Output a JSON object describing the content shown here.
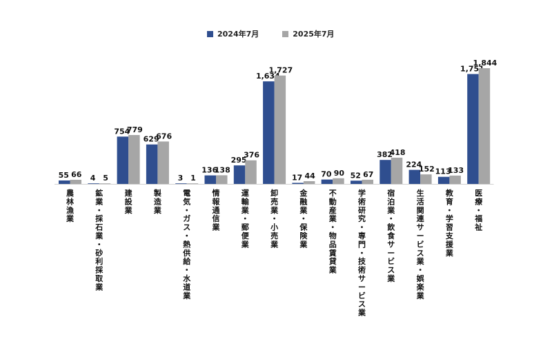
{
  "colors": {
    "series_2024": "#2f4e8f",
    "series_2025": "#a6a6a6"
  },
  "chart_data": {
    "type": "bar",
    "legend_position": "top",
    "grid": false,
    "categories": [
      "農林漁業",
      "鉱業・採石業・砂利採取業",
      "建設業",
      "製造業",
      "電気・ガス・熱供給・水道業",
      "情報通信業",
      "運輸業・郵便業",
      "卸売業・小売業",
      "金融業・保険業",
      "不動産業・物品賃貸業",
      "学術研究・専門・技術サービス業",
      "宿泊業・飲食サービス業",
      "生活関連サービス業・娯楽業",
      "教育・学習支援業",
      "医療・福祉"
    ],
    "series": [
      {
        "name": "2024年7月",
        "values": [
          55,
          4,
          754,
          629,
          3,
          136,
          295,
          1634,
          17,
          70,
          52,
          382,
          224,
          113,
          1751
        ],
        "labels": [
          "55",
          "4",
          "754",
          "629",
          "3",
          "136",
          "295",
          "1,634",
          "17",
          "70",
          "52",
          "382",
          "224",
          "113",
          "1,751"
        ]
      },
      {
        "name": "2025年7月",
        "values": [
          66,
          5,
          779,
          676,
          1,
          138,
          376,
          1727,
          44,
          90,
          67,
          418,
          152,
          133,
          1844
        ],
        "labels": [
          "66",
          "5",
          "779",
          "676",
          "1",
          "138",
          "376",
          "1,727",
          "44",
          "90",
          "67",
          "418",
          "152",
          "133",
          "1,844"
        ]
      }
    ],
    "ylim": [
      0,
      1844
    ]
  }
}
